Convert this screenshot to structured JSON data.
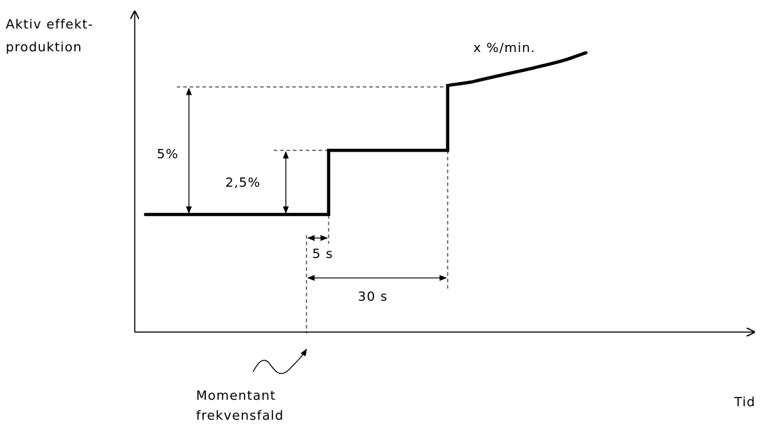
{
  "y_axis_label": [
    "Aktiv effekt-",
    "produktion"
  ],
  "x_axis_label": "Tid",
  "ramp_label": "x %/min.",
  "step_small_label": "2,5%",
  "step_large_label": "5%",
  "delay_short_label": "5 s",
  "delay_long_label": "30 s",
  "event_label": [
    "Momentant",
    "frekvensfald"
  ]
}
